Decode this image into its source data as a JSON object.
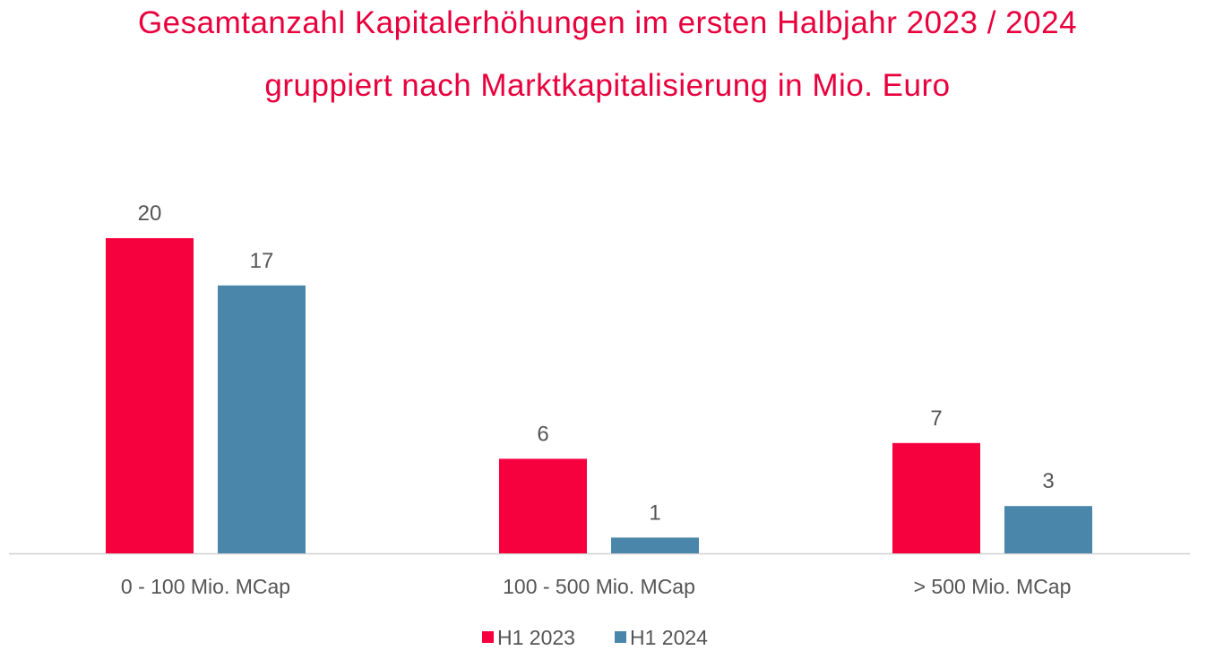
{
  "colors": {
    "title": "#e8003d",
    "h1_2023": "#f7003e",
    "h1_2024": "#4a86aa",
    "axis": "#d0d0d0",
    "text": "#555555"
  },
  "chart_data": {
    "type": "bar",
    "title_line1": "Gesamtanzahl Kapitalerhöhungen im ersten Halbjahr 2023 / 2024",
    "title_line2": "gruppiert nach Marktkapitalisierung in Mio. Euro",
    "categories": [
      "0 - 100 Mio. MCap",
      "100 - 500 Mio. MCap",
      "> 500 Mio. MCap"
    ],
    "series": [
      {
        "name": "H1 2023",
        "values": [
          20,
          6,
          7
        ]
      },
      {
        "name": "H1 2024",
        "values": [
          17,
          1,
          3
        ]
      }
    ],
    "ylim": [
      0,
      20
    ],
    "grid": false,
    "legend_position": "bottom-center"
  }
}
